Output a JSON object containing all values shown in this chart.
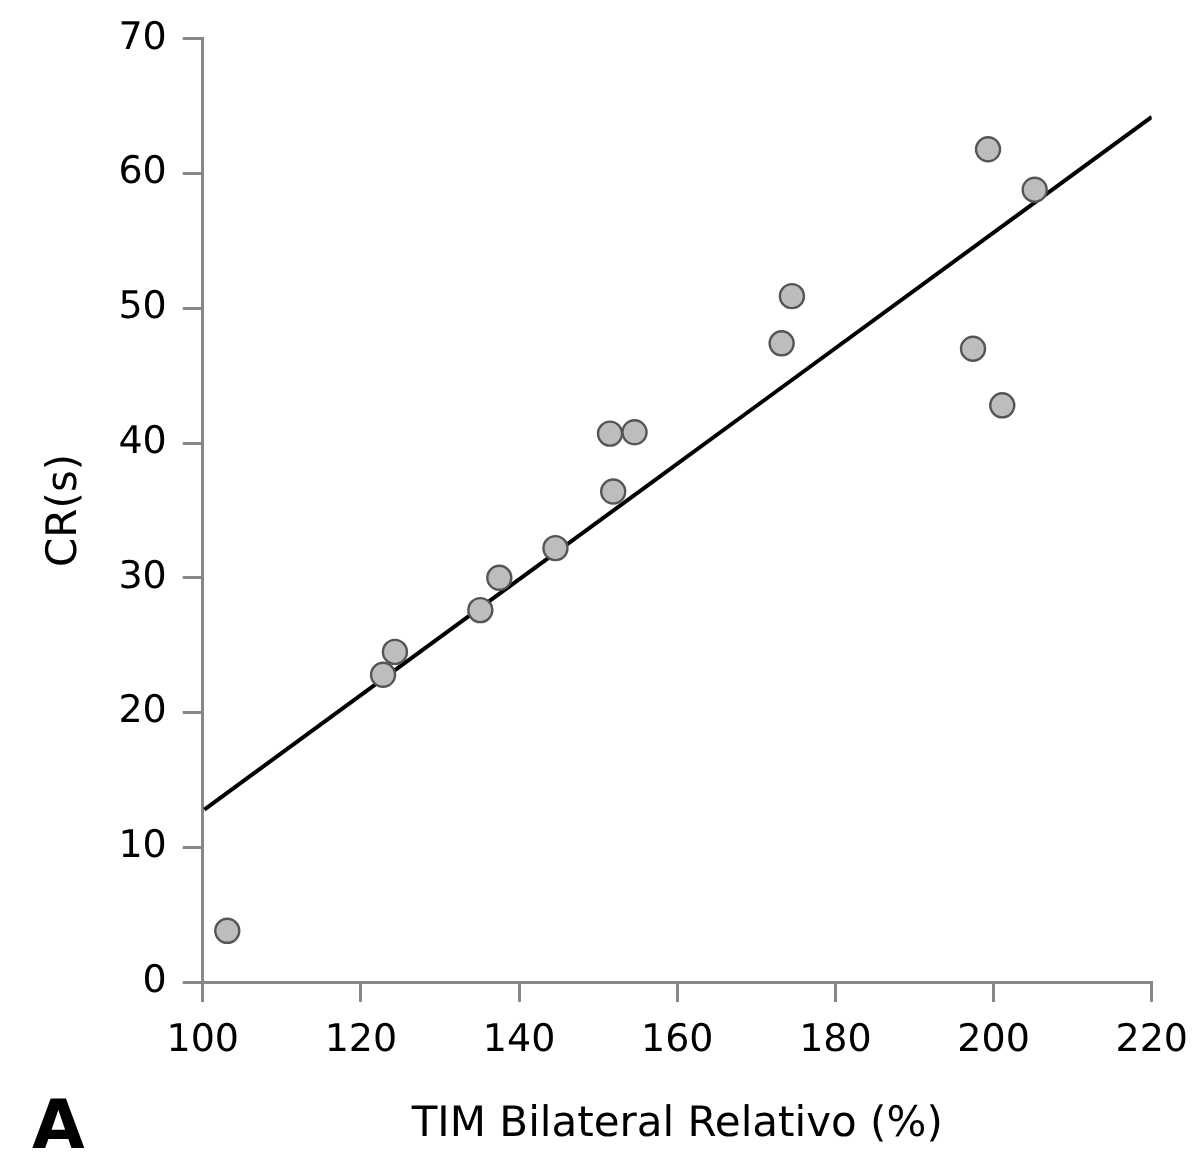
{
  "chart_data": {
    "type": "scatter",
    "xlabel": "TIM Bilateral Relativo (%)",
    "ylabel": "CR(s)",
    "xlim": [
      100,
      220
    ],
    "xticks": [
      100,
      120,
      140,
      160,
      180,
      200,
      220
    ],
    "ylim": [
      0,
      70
    ],
    "yticks": [
      0,
      10,
      20,
      30,
      40,
      50,
      60,
      70
    ],
    "grid": false,
    "legend": false,
    "marker": "circle",
    "annotations": [
      "A"
    ],
    "series": [
      {
        "color": "#bdbdbd",
        "x": [
          103.1,
          122.8,
          124.3,
          135.1,
          137.5,
          144.6,
          151.9,
          151.5,
          154.6,
          174.5,
          173.2,
          199.3,
          205.2,
          197.4,
          201.1
        ],
        "values": [
          3.8,
          22.8,
          24.5,
          27.6,
          30.0,
          32.2,
          36.4,
          40.7,
          40.8,
          50.9,
          47.4,
          61.8,
          58.8,
          47.0,
          42.8
        ]
      },
      {
        "type": "line",
        "color": "#000000",
        "x": [
          100.2,
          220
        ],
        "values": [
          12.8,
          64.2
        ],
        "marker": "none"
      }
    ]
  }
}
